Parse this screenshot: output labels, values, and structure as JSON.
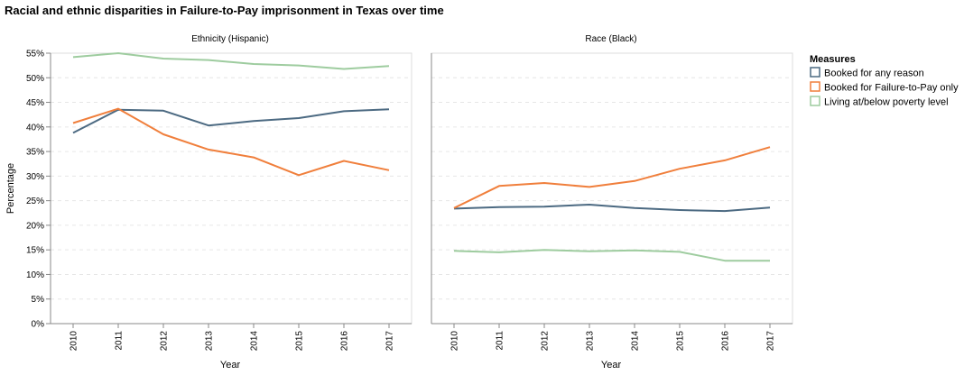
{
  "chart_data": {
    "type": "line",
    "title": "Racial and ethnic disparities in Failure-to-Pay imprisonment in Texas over time",
    "xlabel": "Year",
    "ylabel": "Percentage",
    "x": [
      "2010",
      "2011",
      "2012",
      "2013",
      "2014",
      "2015",
      "2016",
      "2017"
    ],
    "ylim": [
      0,
      55
    ],
    "yticks": [
      "0%",
      "5%",
      "10%",
      "15%",
      "20%",
      "25%",
      "30%",
      "35%",
      "40%",
      "45%",
      "50%",
      "55%"
    ],
    "grid": true,
    "legend": {
      "title": "Measures",
      "placement": "right",
      "entries": [
        {
          "label": "Booked for any reason",
          "color": "#4c6a82"
        },
        {
          "label": "Booked for Failure-to-Pay only",
          "color": "#f07f3c"
        },
        {
          "label": "Living at/below poverty level",
          "color": "#9ecc9f"
        }
      ]
    },
    "facets": [
      {
        "title": "Ethnicity (Hispanic)",
        "series": [
          {
            "name": "Booked for any reason",
            "values": [
              38.8,
              43.5,
              43.3,
              40.3,
              41.2,
              41.8,
              43.2,
              43.6
            ]
          },
          {
            "name": "Booked for Failure-to-Pay only",
            "values": [
              40.8,
              43.7,
              38.5,
              35.4,
              33.8,
              30.2,
              33.1,
              31.2
            ]
          },
          {
            "name": "Living at/below poverty level",
            "values": [
              54.2,
              55.0,
              53.9,
              53.6,
              52.8,
              52.5,
              51.8,
              52.4
            ]
          }
        ]
      },
      {
        "title": "Race (Black)",
        "series": [
          {
            "name": "Booked for any reason",
            "values": [
              23.4,
              23.7,
              23.8,
              24.2,
              23.5,
              23.1,
              22.9,
              23.6
            ]
          },
          {
            "name": "Booked for Failure-to-Pay only",
            "values": [
              23.5,
              28.0,
              28.6,
              27.8,
              29.0,
              31.5,
              33.2,
              35.9
            ]
          },
          {
            "name": "Living at/below poverty level",
            "values": [
              14.8,
              14.5,
              15.0,
              14.7,
              14.9,
              14.6,
              12.8,
              12.8
            ]
          }
        ]
      }
    ]
  }
}
